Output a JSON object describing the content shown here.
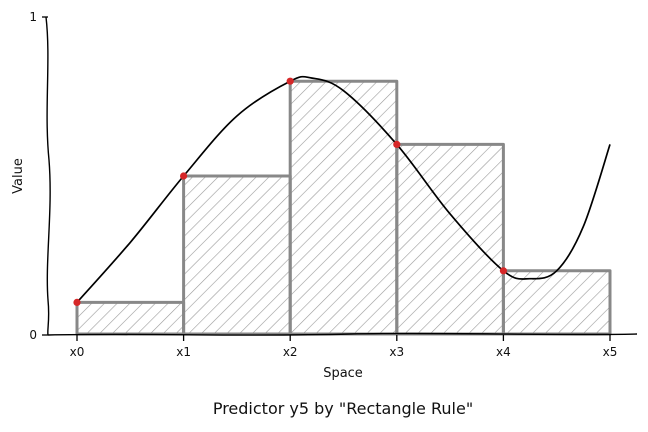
{
  "chart_data": {
    "type": "bar",
    "title": "Predictor y5 by \"Rectangle Rule\"",
    "xlabel": "Space",
    "ylabel": "Value",
    "categories": [
      "x0",
      "x1",
      "x2",
      "x3",
      "x4",
      "x5"
    ],
    "x": [
      0,
      1,
      2,
      3,
      4,
      5
    ],
    "ylim": [
      0,
      1
    ],
    "yticks": [
      "0",
      "1"
    ],
    "rectangles": [
      {
        "x_start": 0,
        "x_end": 1,
        "height": 0.1
      },
      {
        "x_start": 1,
        "x_end": 2,
        "height": 0.5
      },
      {
        "x_start": 2,
        "x_end": 3,
        "height": 0.8
      },
      {
        "x_start": 3,
        "x_end": 4,
        "height": 0.6
      },
      {
        "x_start": 4,
        "x_end": 5,
        "height": 0.2
      }
    ],
    "sample_points": [
      {
        "x": 0,
        "y": 0.1
      },
      {
        "x": 1,
        "y": 0.5
      },
      {
        "x": 2,
        "y": 0.8
      },
      {
        "x": 3,
        "y": 0.6
      },
      {
        "x": 4,
        "y": 0.2
      }
    ],
    "curve": {
      "x": [
        0,
        0.5,
        1,
        1.5,
        2,
        2.2,
        2.5,
        3,
        3.5,
        4,
        4.25,
        4.5,
        4.75,
        5
      ],
      "y": [
        0.1,
        0.29,
        0.5,
        0.69,
        0.8,
        0.81,
        0.77,
        0.6,
        0.38,
        0.2,
        0.175,
        0.2,
        0.34,
        0.6
      ]
    },
    "grid": false,
    "legend": "none",
    "colors": {
      "bar_stroke": "#888888",
      "hatch": "#9a9a9a",
      "curve": "#000000",
      "point": "#d62728",
      "axis": "#000000"
    }
  }
}
